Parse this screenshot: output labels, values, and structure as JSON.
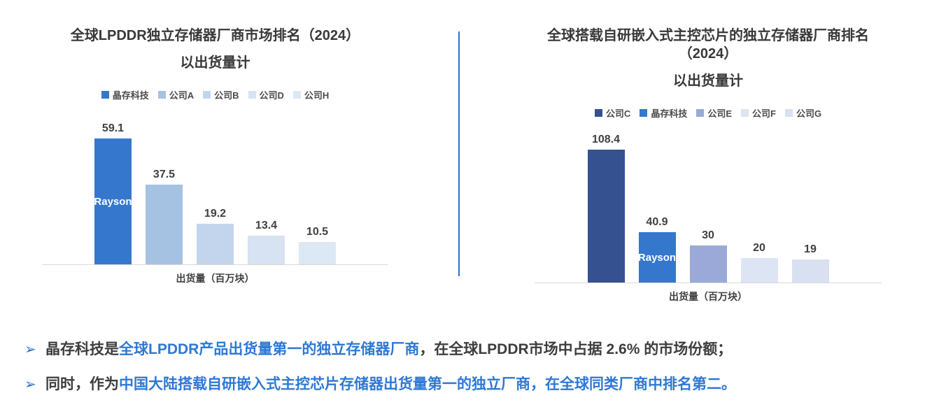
{
  "divider_color": "#2e75c8",
  "accent_blue": "#2e78d4",
  "chart_data": [
    {
      "type": "bar",
      "title": "全球LPDDR独立存储器厂商市场排名（2024）",
      "subtitle": "以出货量计",
      "categories": [
        "晶存科技",
        "公司A",
        "公司B",
        "公司D",
        "公司H"
      ],
      "values": [
        59.1,
        37.5,
        19.2,
        13.4,
        10.5
      ],
      "colors": [
        "#3577cd",
        "#a6c2e3",
        "#c2d5ec",
        "#d7e2f2",
        "#dde8f5"
      ],
      "inner_labels": [
        "Rayson",
        "",
        "",
        "",
        ""
      ],
      "xlabel": "出货量（百万块）",
      "ylabel": "",
      "ylim": [
        0,
        69
      ],
      "grid": false,
      "value_labels": true,
      "legend_position": "top"
    },
    {
      "type": "bar",
      "title": "全球搭载自研嵌入式主控芯片的独立存储器厂商排名（2024）",
      "subtitle": "以出货量计",
      "categories": [
        "公司C",
        "晶存科技",
        "公司E",
        "公司F",
        "公司G"
      ],
      "values": [
        108.4,
        40.9,
        30,
        20,
        19
      ],
      "colors": [
        "#35518f",
        "#3577cd",
        "#9aa9d8",
        "#dde4f4",
        "#d8e0f1"
      ],
      "inner_labels": [
        "",
        "Rayson",
        "",
        "",
        ""
      ],
      "xlabel": "出货量（百万块）",
      "ylabel": "",
      "ylim": [
        0,
        120
      ],
      "grid": false,
      "value_labels": true,
      "legend_position": "top"
    }
  ],
  "bullets": [
    {
      "marker": "➢",
      "segments": [
        {
          "text": "晶存科技是",
          "style": "dark"
        },
        {
          "text": "全球LPDDR产品出货量第一的独立存储器厂商",
          "style": "blue"
        },
        {
          "text": "，在全球LPDDR市场中占据 2.6% 的市场份额；",
          "style": "dark"
        }
      ]
    },
    {
      "marker": "➢",
      "segments": [
        {
          "text": "同时，作为",
          "style": "dark"
        },
        {
          "text": "中国大陆搭载自研嵌入式主控芯片存储器出货量第一的独立厂商，在全球同类厂商中排名第二。",
          "style": "blue"
        }
      ]
    }
  ]
}
